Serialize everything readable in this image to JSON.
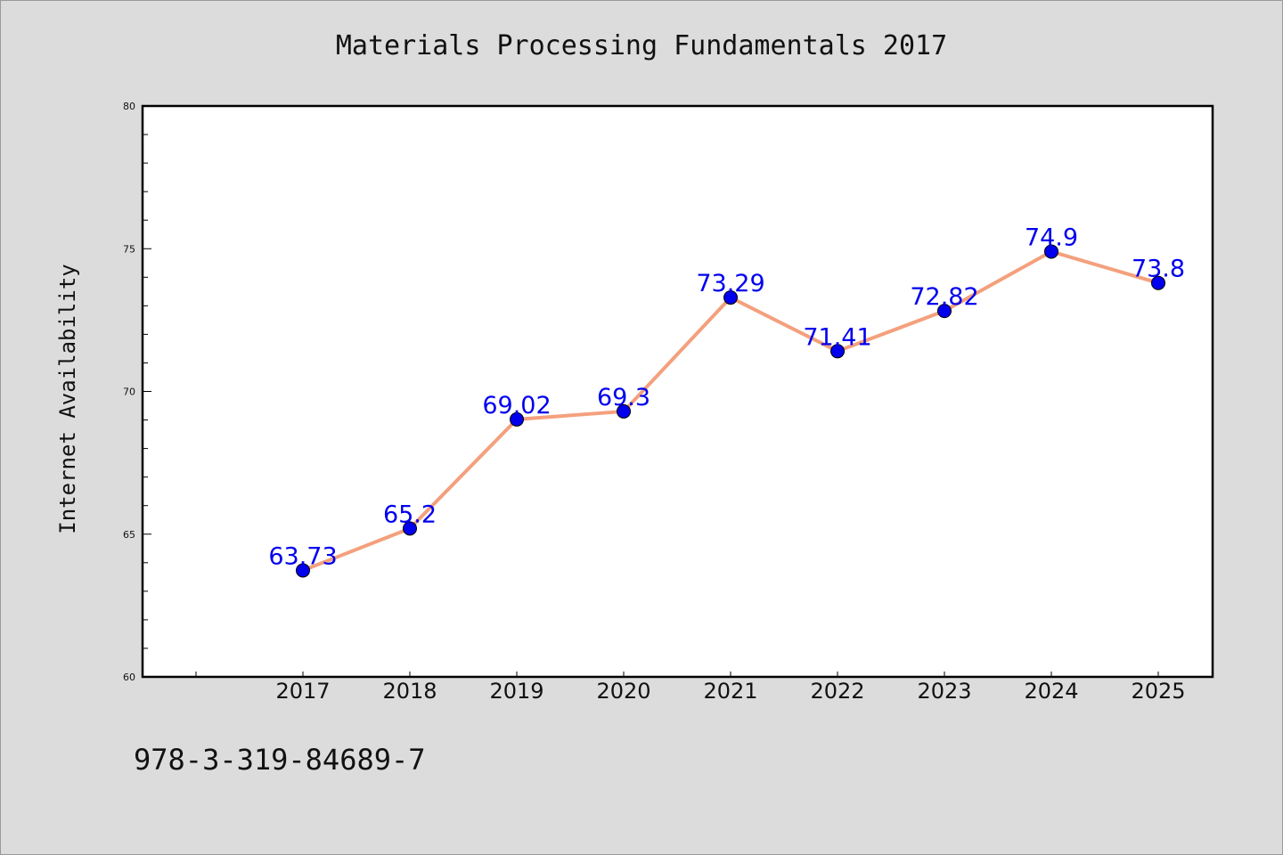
{
  "page": {
    "title": "Materials Processing Fundamentals 2017",
    "footer_code": "978-3-319-84689-7"
  },
  "chart_data": {
    "type": "line",
    "title": "Materials Processing Fundamentals 2017",
    "xlabel": "",
    "ylabel": "Internet Availability",
    "categories": [
      "2017",
      "2018",
      "2019",
      "2020",
      "2021",
      "2022",
      "2023",
      "2024",
      "2025"
    ],
    "series": [
      {
        "values": [
          63.73,
          65.2,
          69.02,
          69.3,
          73.29,
          71.41,
          72.82,
          74.9,
          73.8
        ],
        "labels": [
          "63.73",
          "65.2",
          "69.02",
          "69.3",
          "73.29",
          "71.41",
          "72.82",
          "74.9",
          "73.8"
        ],
        "line_color": "#f4a07d",
        "marker_color": "#0000ee",
        "label_color": "#0000ee"
      }
    ],
    "ylim": [
      60,
      80
    ],
    "yticks": [
      "60",
      "65",
      "70",
      "75",
      "80"
    ],
    "grid": false,
    "legend": "none"
  }
}
